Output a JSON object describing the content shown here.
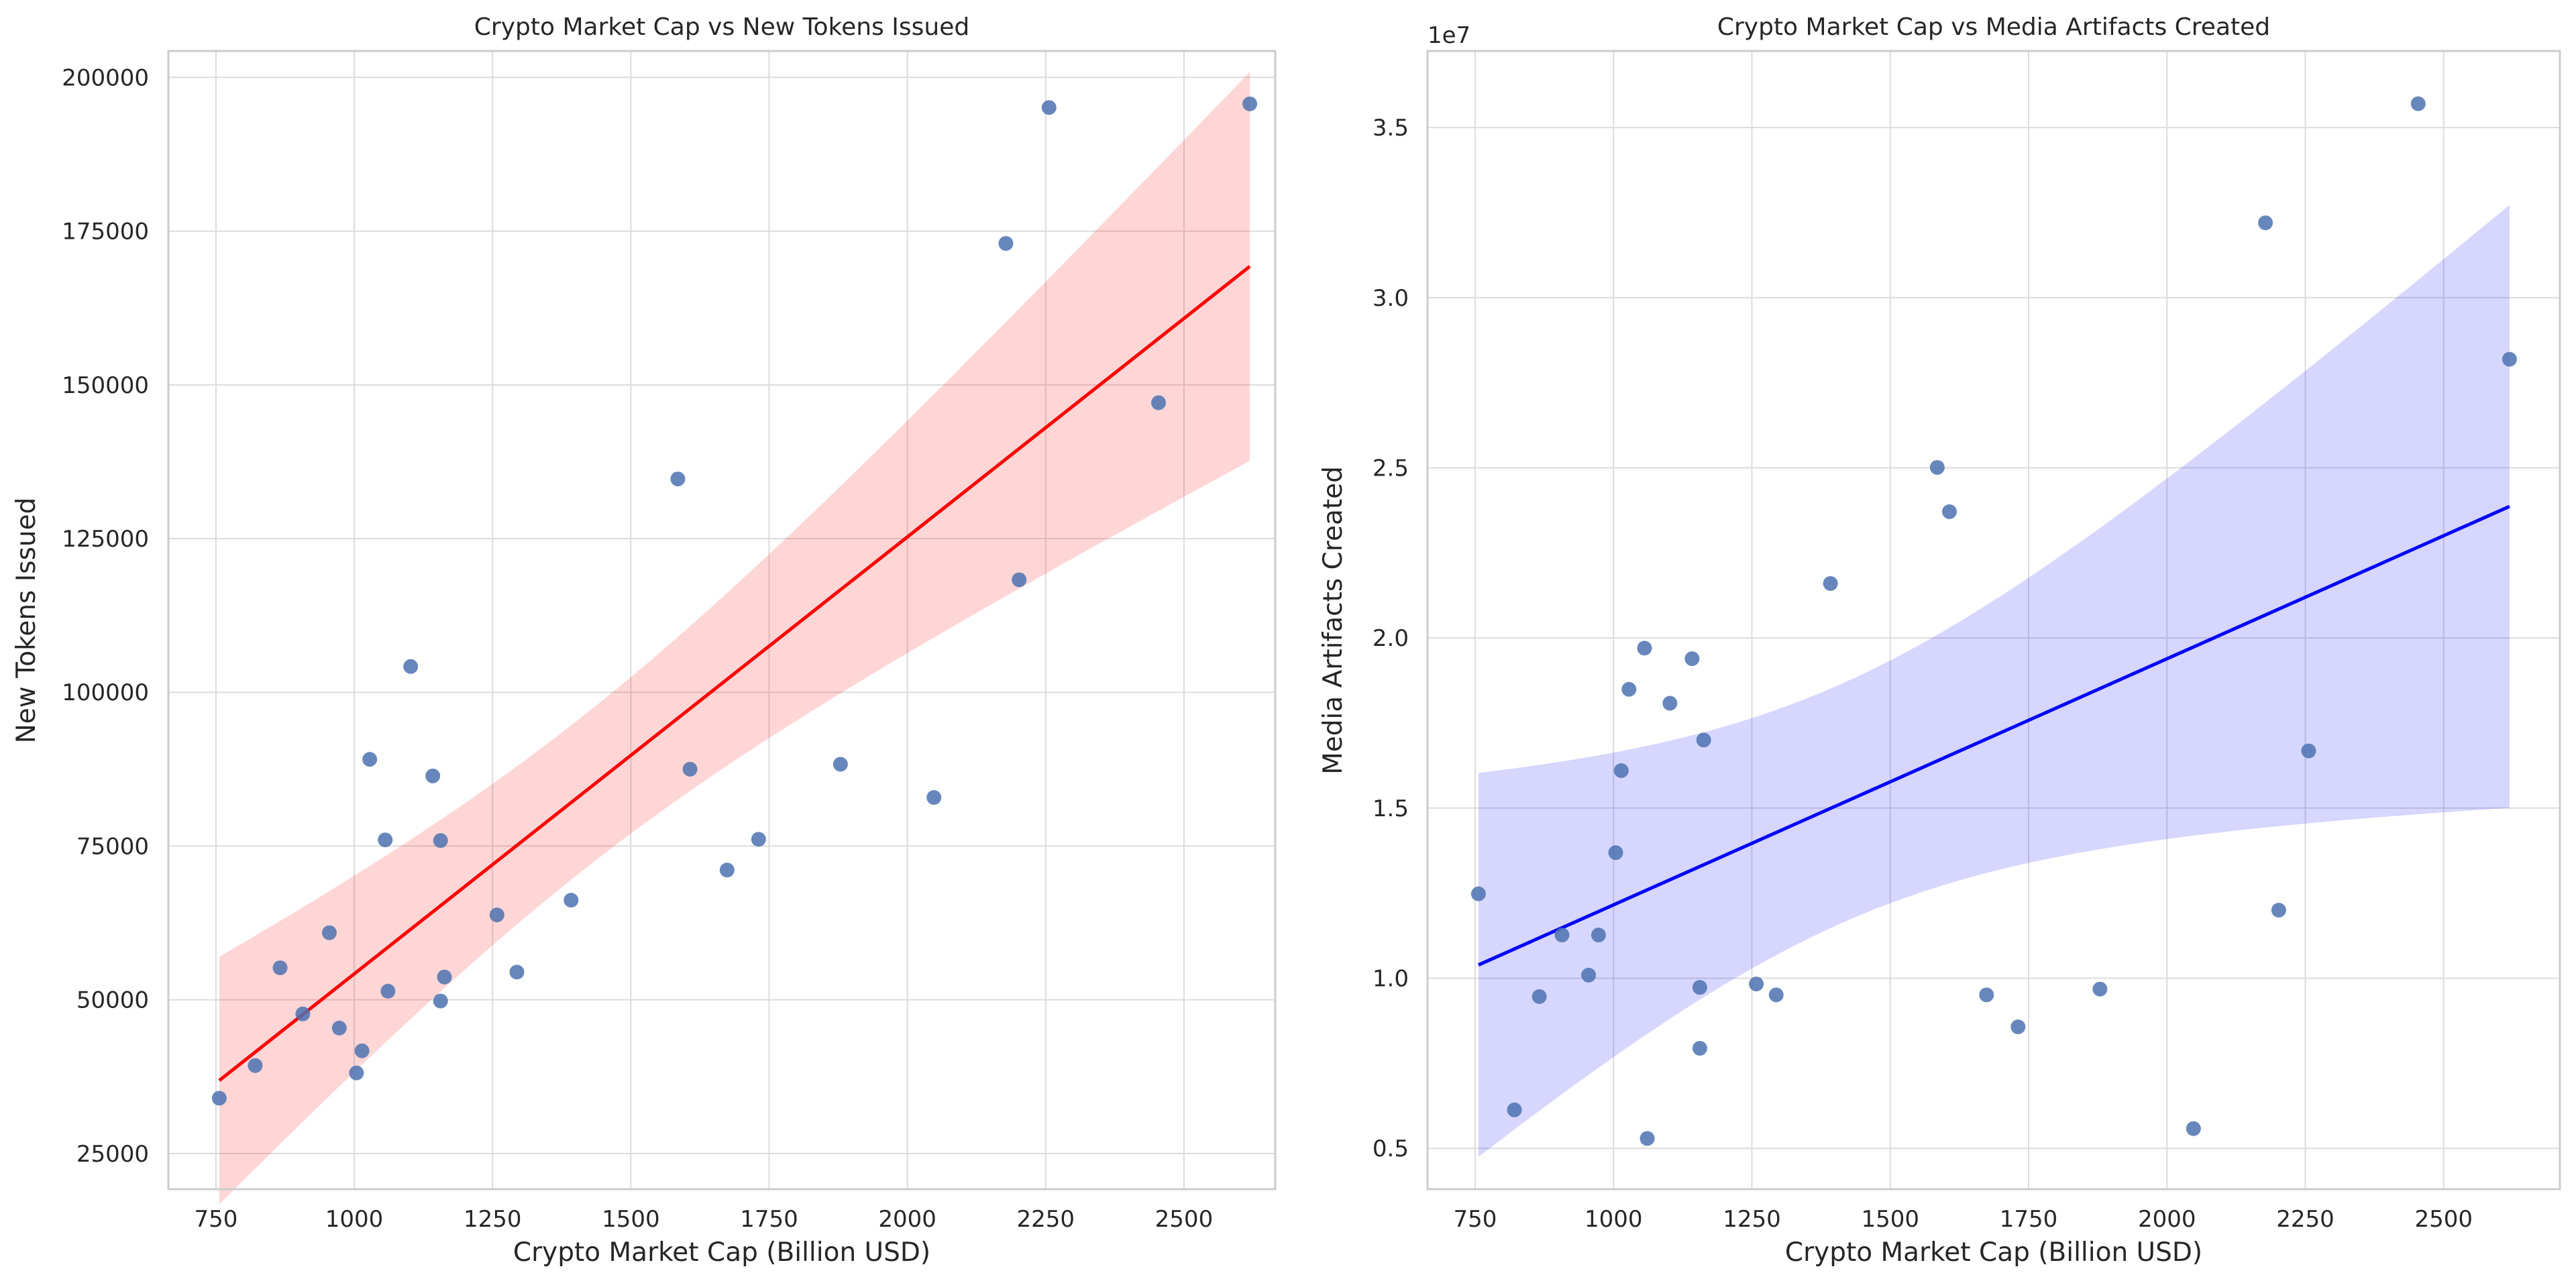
{
  "chart_data": [
    {
      "type": "scatter",
      "title": "Crypto Market Cap vs New Tokens Issued",
      "xlabel": "Crypto Market Cap (Billion USD)",
      "ylabel": "New Tokens Issued",
      "xlim": [
        664,
        2665
      ],
      "ylim": [
        19200,
        204300
      ],
      "xticks": [
        750,
        1000,
        1250,
        1500,
        1750,
        2000,
        2250,
        2500
      ],
      "yticks": [
        25000,
        50000,
        75000,
        100000,
        125000,
        150000,
        175000,
        200000
      ],
      "ytick_labels": [
        "25000",
        "50000",
        "75000",
        "100000",
        "125000",
        "150000",
        "175000",
        "200000"
      ],
      "offset_label": "",
      "grid": true,
      "point_color": "#4c72b0",
      "line_color": "#ff0000",
      "band_color": "#ff0000",
      "regression": true,
      "x": [
        756,
        821,
        866,
        907,
        955,
        973,
        1004,
        1014,
        1028,
        1056,
        1061,
        1102,
        1142,
        1156,
        1156,
        1163,
        1258,
        1294,
        1392,
        1585,
        1607,
        1674,
        1731,
        1879,
        2048,
        2178,
        2202,
        2256,
        2454,
        2619
      ],
      "y": [
        34000,
        39300,
        55200,
        47700,
        60900,
        45400,
        38100,
        41700,
        89100,
        76000,
        51400,
        104200,
        86400,
        75900,
        49800,
        53700,
        63800,
        54500,
        66200,
        134700,
        87500,
        71100,
        76100,
        88300,
        82900,
        173000,
        118300,
        195100,
        147100,
        195700
      ]
    },
    {
      "type": "scatter",
      "title": "Crypto Market Cap vs Media Artifacts Created",
      "xlabel": "Crypto Market Cap (Billion USD)",
      "ylabel": "Media Artifacts Created",
      "xlim": [
        664,
        2710
      ],
      "ylim": [
        3800000,
        37250000
      ],
      "xticks": [
        750,
        1000,
        1250,
        1500,
        1750,
        2000,
        2250,
        2500
      ],
      "yticks": [
        5000000,
        10000000,
        15000000,
        20000000,
        25000000,
        30000000,
        35000000
      ],
      "ytick_labels": [
        "0.5",
        "1.0",
        "1.5",
        "2.0",
        "2.5",
        "3.0",
        "3.5"
      ],
      "offset_label": "1e7",
      "grid": true,
      "point_color": "#4c72b0",
      "line_color": "#0000ff",
      "band_color": "#0000ff",
      "regression": true,
      "x": [
        756,
        821,
        866,
        907,
        955,
        973,
        1004,
        1014,
        1028,
        1056,
        1061,
        1102,
        1142,
        1156,
        1156,
        1163,
        1258,
        1294,
        1392,
        1585,
        1607,
        1674,
        1731,
        1879,
        2048,
        2178,
        2202,
        2256,
        2454,
        2619
      ],
      "y": [
        12480000,
        6130000,
        9460000,
        11270000,
        10090000,
        11270000,
        13690000,
        16100000,
        18490000,
        19700000,
        5290000,
        18080000,
        19390000,
        9730000,
        7940000,
        17000000,
        9830000,
        9510000,
        21600000,
        25010000,
        23710000,
        9510000,
        8570000,
        9680000,
        5580000,
        32200000,
        12000000,
        16680000,
        35700000,
        28190000
      ]
    }
  ]
}
